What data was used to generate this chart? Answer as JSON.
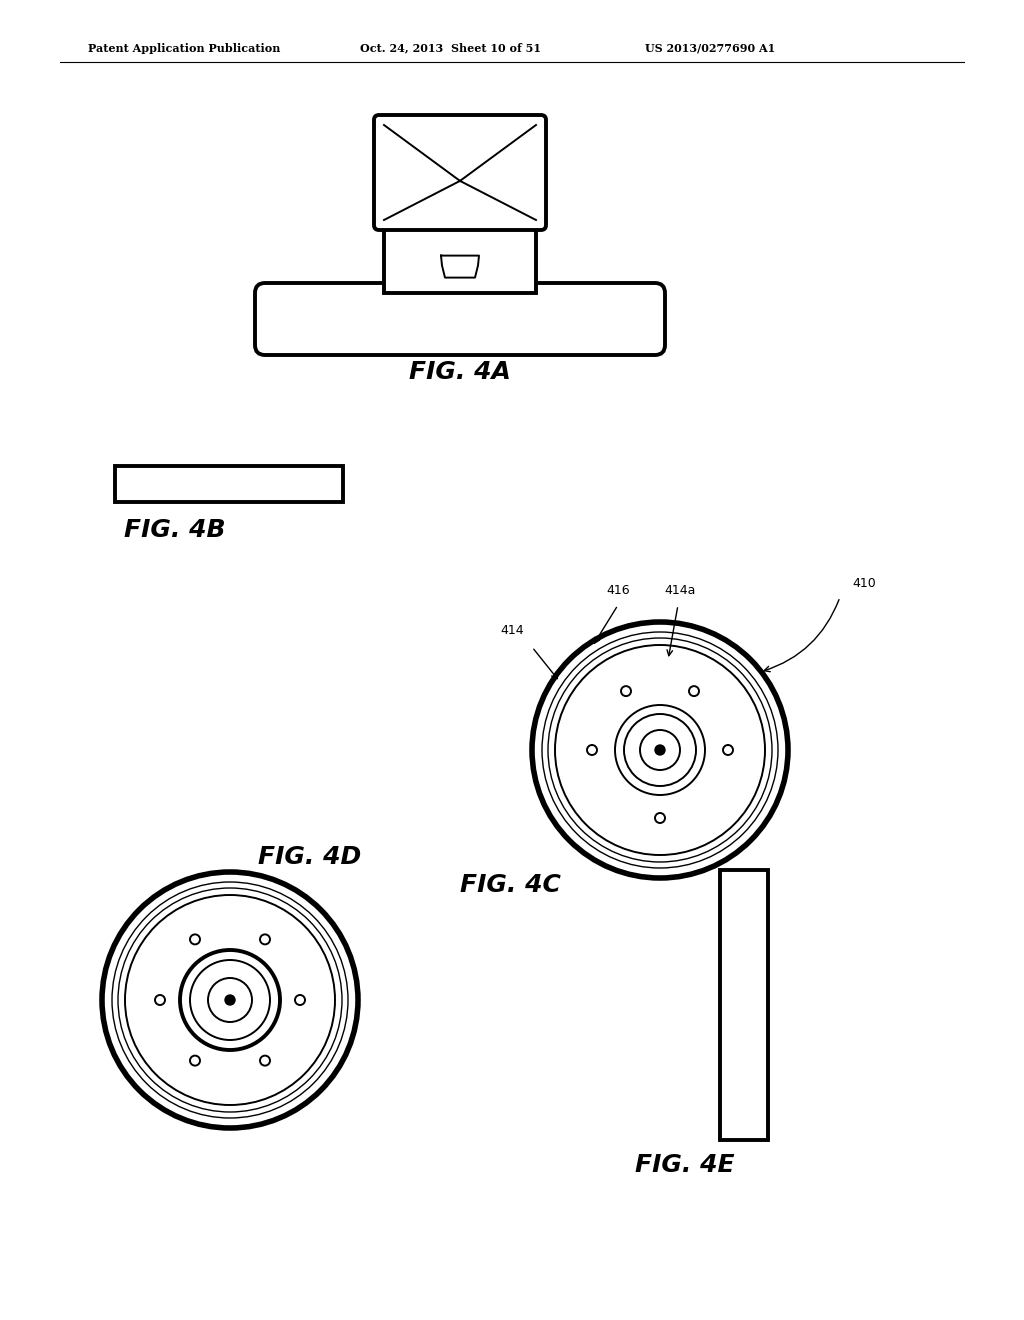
{
  "bg_color": "#ffffff",
  "line_color": "#000000",
  "header_left": "Patent Application Publication",
  "header_mid": "Oct. 24, 2013  Sheet 10 of 51",
  "header_right": "US 2013/0277690 A1",
  "fig4a_label": "FIG. 4A",
  "fig4b_label": "FIG. 4B",
  "fig4c_label": "FIG. 4C",
  "fig4d_label": "FIG. 4D",
  "fig4e_label": "FIG. 4E",
  "ref_410": "410",
  "ref_414": "414",
  "ref_414a": "414a",
  "ref_416": "416",
  "lw_main": 1.4,
  "lw_thick": 2.8,
  "lw_outer": 4.0
}
